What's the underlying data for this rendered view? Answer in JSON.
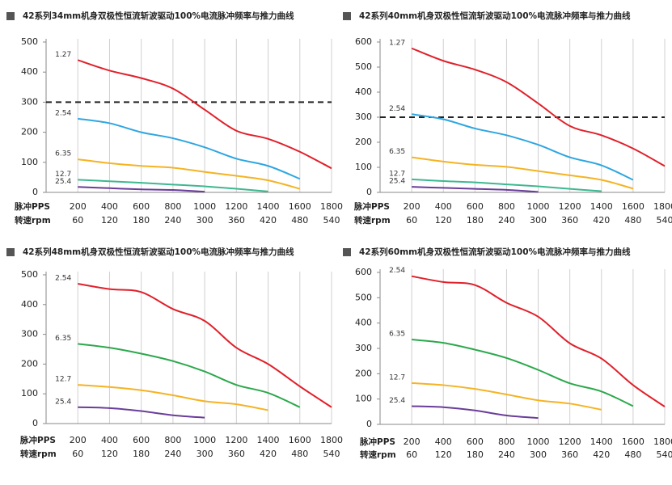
{
  "chart_data": [
    {
      "type": "line",
      "title": "42系列34mm机身双极性恒流斩波驱动100%电流脉冲频率与推力曲线",
      "x_label": "脉冲PPS",
      "x2_label": "转速rpm",
      "xlim": [
        0,
        1800
      ],
      "xticks": [
        200,
        400,
        600,
        800,
        1000,
        1200,
        1400,
        1600,
        1800
      ],
      "x2lim": [
        0,
        540
      ],
      "x2ticks": [
        60,
        120,
        180,
        240,
        300,
        360,
        420,
        480,
        540
      ],
      "ylim": [
        0,
        500
      ],
      "yticks": [
        0,
        100,
        200,
        300,
        400,
        500
      ],
      "hline": 300,
      "x": [
        200,
        400,
        600,
        800,
        1000,
        1200,
        1400,
        1600,
        1800
      ],
      "series": [
        {
          "name": "1.27",
          "color": "#e0202a",
          "values": [
            440,
            405,
            380,
            345,
            275,
            205,
            178,
            135,
            80
          ]
        },
        {
          "name": "2.54",
          "color": "#2ea6e0",
          "values": [
            245,
            230,
            200,
            180,
            150,
            112,
            88,
            45,
            null
          ]
        },
        {
          "name": "6.35",
          "color": "#f5b324",
          "values": [
            110,
            97,
            88,
            82,
            68,
            55,
            40,
            12,
            null
          ]
        },
        {
          "name": "12.7",
          "color": "#3db890",
          "values": [
            42,
            37,
            32,
            26,
            20,
            12,
            3,
            null,
            null
          ]
        },
        {
          "name": "25.4",
          "color": "#6a3d9a",
          "values": [
            18,
            14,
            10,
            8,
            2,
            null,
            null,
            null,
            null
          ]
        }
      ]
    },
    {
      "type": "line",
      "title": "42系列40mm机身双极性恒流斩波驱动100%电流脉冲频率与推力曲线",
      "x_label": "脉冲PPS",
      "x2_label": "转速rpm",
      "xlim": [
        0,
        1800
      ],
      "xticks": [
        200,
        400,
        600,
        800,
        1000,
        1200,
        1400,
        1600,
        1800
      ],
      "x2lim": [
        0,
        540
      ],
      "x2ticks": [
        60,
        120,
        180,
        240,
        300,
        360,
        420,
        480,
        540
      ],
      "ylim": [
        0,
        600
      ],
      "yticks": [
        0,
        100,
        200,
        300,
        400,
        500,
        600
      ],
      "hline": 300,
      "x": [
        200,
        400,
        600,
        800,
        1000,
        1200,
        1400,
        1600,
        1800
      ],
      "series": [
        {
          "name": "1.27",
          "color": "#e0202a",
          "values": [
            575,
            525,
            490,
            440,
            355,
            265,
            228,
            175,
            105
          ]
        },
        {
          "name": "2.54",
          "color": "#2ea6e0",
          "values": [
            312,
            292,
            255,
            228,
            190,
            140,
            108,
            50,
            null
          ]
        },
        {
          "name": "6.35",
          "color": "#f5b324",
          "values": [
            140,
            123,
            110,
            102,
            85,
            68,
            50,
            15,
            null
          ]
        },
        {
          "name": "12.7",
          "color": "#3db890",
          "values": [
            52,
            45,
            40,
            32,
            24,
            14,
            5,
            null,
            null
          ]
        },
        {
          "name": "25.4",
          "color": "#6a3d9a",
          "values": [
            22,
            18,
            14,
            10,
            2,
            null,
            null,
            null,
            null
          ]
        }
      ]
    },
    {
      "type": "line",
      "title": "42系列48mm机身双极性恒流斩波驱动100%电流脉冲频率与推力曲线",
      "x_label": "脉冲PPS",
      "x2_label": "转速rpm",
      "xlim": [
        0,
        1800
      ],
      "xticks": [
        200,
        400,
        600,
        800,
        1000,
        1200,
        1400,
        1600,
        1800
      ],
      "x2lim": [
        0,
        540
      ],
      "x2ticks": [
        60,
        120,
        180,
        240,
        300,
        360,
        420,
        480,
        540
      ],
      "ylim": [
        0,
        500
      ],
      "yticks": [
        0,
        100,
        200,
        300,
        400,
        500
      ],
      "x": [
        200,
        400,
        600,
        800,
        1000,
        1200,
        1400,
        1600,
        1800
      ],
      "series": [
        {
          "name": "2.54",
          "color": "#e0202a",
          "values": [
            470,
            452,
            442,
            385,
            345,
            255,
            200,
            125,
            55
          ]
        },
        {
          "name": "6.35",
          "color": "#2ca84c",
          "values": [
            268,
            255,
            235,
            210,
            175,
            130,
            103,
            55,
            null
          ]
        },
        {
          "name": "12.7",
          "color": "#f5b324",
          "values": [
            130,
            123,
            112,
            95,
            75,
            65,
            45,
            null,
            null
          ]
        },
        {
          "name": "25.4",
          "color": "#6a3d9a",
          "values": [
            55,
            52,
            42,
            28,
            20,
            null,
            null,
            null,
            null
          ]
        }
      ]
    },
    {
      "type": "line",
      "title": "42系列60mm机身双极性恒流斩波驱动100%电流脉冲频率与推力曲线",
      "x_label": "脉冲PPS",
      "x2_label": "转速rpm",
      "xlim": [
        0,
        1800
      ],
      "xticks": [
        200,
        400,
        600,
        800,
        1000,
        1200,
        1400,
        1600,
        1800
      ],
      "x2lim": [
        0,
        540
      ],
      "x2ticks": [
        60,
        120,
        180,
        240,
        300,
        360,
        420,
        480,
        540
      ],
      "ylim": [
        0,
        600
      ],
      "yticks": [
        0,
        100,
        200,
        300,
        400,
        500,
        600
      ],
      "x": [
        200,
        400,
        600,
        800,
        1000,
        1200,
        1400,
        1600,
        1800
      ],
      "series": [
        {
          "name": "2.54",
          "color": "#e0202a",
          "values": [
            585,
            562,
            550,
            480,
            425,
            320,
            260,
            155,
            70
          ]
        },
        {
          "name": "6.35",
          "color": "#2ca84c",
          "values": [
            335,
            322,
            295,
            262,
            215,
            162,
            130,
            72,
            null
          ]
        },
        {
          "name": "12.7",
          "color": "#f5b324",
          "values": [
            163,
            155,
            140,
            118,
            95,
            82,
            58,
            null,
            null
          ]
        },
        {
          "name": "25.4",
          "color": "#6a3d9a",
          "values": [
            72,
            68,
            55,
            35,
            25,
            null,
            null,
            null,
            null
          ]
        }
      ]
    }
  ]
}
